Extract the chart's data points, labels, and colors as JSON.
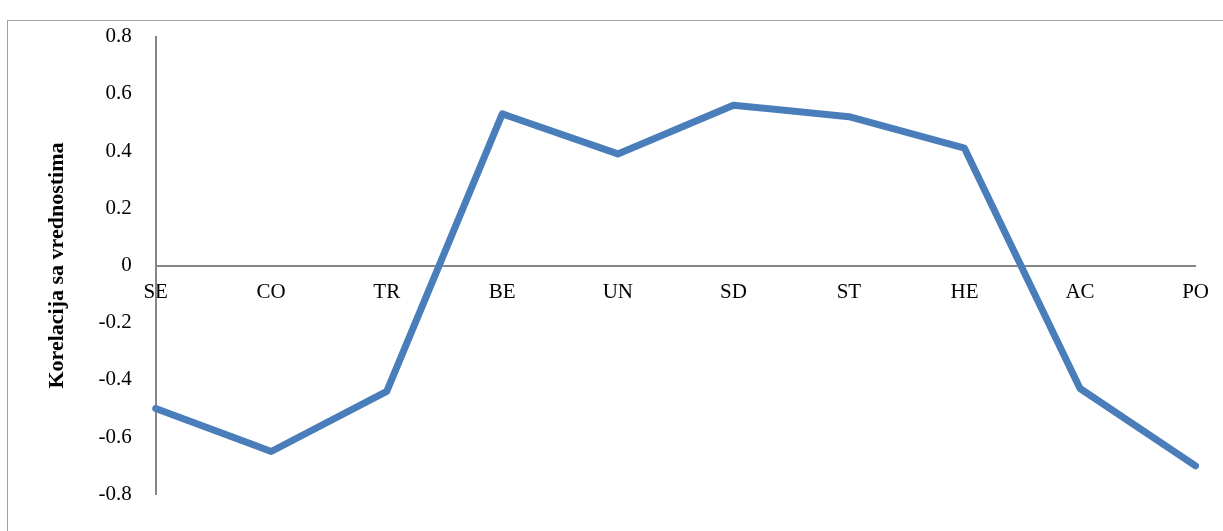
{
  "chart_data": {
    "type": "line",
    "ylabel": "Korelacija sa vrednostima",
    "categories": [
      "SE",
      "CO",
      "TR",
      "BE",
      "UN",
      "SD",
      "ST",
      "HE",
      "AC",
      "PO"
    ],
    "series": [
      {
        "color": "#4a7ebb",
        "values": [
          -0.5,
          -0.65,
          -0.44,
          0.53,
          0.39,
          0.56,
          0.52,
          0.41,
          -0.43,
          -0.7
        ]
      }
    ],
    "ylim": [
      -0.8,
      0.8
    ],
    "yticks": [
      -0.8,
      -0.6,
      -0.4,
      -0.2,
      0,
      0.2,
      0.4,
      0.6,
      0.8
    ],
    "grid": false,
    "legend": false,
    "marker": "none",
    "line_style": "solid"
  }
}
